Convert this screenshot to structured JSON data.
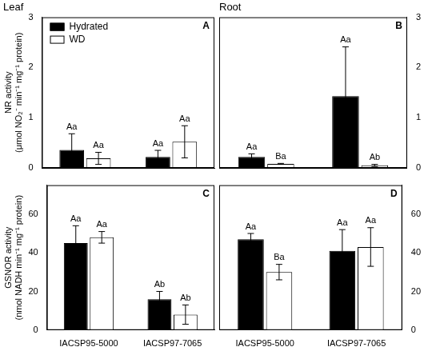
{
  "chart_data": [
    {
      "type": "bar",
      "title": "Leaf",
      "panel_label": "A",
      "y_label": [
        "NR activity",
        "(μmol NO₂⁻ min⁻¹ mg⁻¹ protein)"
      ],
      "categories": [
        "IACSP95-5000",
        "IACSP97-7065"
      ],
      "series": [
        {
          "name": "Hydrated",
          "color": "#000000",
          "values": [
            0.36,
            0.22
          ],
          "errors": [
            0.32,
            0.13
          ],
          "annotations": [
            "Aa",
            "Aa"
          ]
        },
        {
          "name": "WD",
          "color": "#ffffff",
          "values": [
            0.19,
            0.52
          ],
          "errors": [
            0.12,
            0.32
          ],
          "annotations": [
            "Aa",
            "Aa"
          ]
        }
      ],
      "ylim": [
        0,
        3
      ],
      "yticks": [
        0,
        1,
        2,
        3
      ],
      "grid": false,
      "legend": "upper left",
      "tick_labels": "y"
    },
    {
      "type": "bar",
      "title": "Root",
      "panel_label": "B",
      "categories": [
        "IACSP95-5000",
        "IACSP97-7065"
      ],
      "series": [
        {
          "name": "Hydrated",
          "color": "#000000",
          "values": [
            0.22,
            1.43
          ],
          "errors": [
            0.06,
            0.98
          ],
          "annotations": [
            "Aa",
            "Aa"
          ]
        },
        {
          "name": "WD",
          "color": "#ffffff",
          "values": [
            0.08,
            0.05
          ],
          "errors": [
            0.01,
            0.02
          ],
          "annotations": [
            "Ba",
            "Ab"
          ]
        }
      ],
      "ylim": [
        0,
        3
      ],
      "yticks": [
        0,
        1,
        2,
        3
      ],
      "grid": false,
      "tick_labels": "y"
    },
    {
      "type": "bar",
      "panel_label": "C",
      "y_label": [
        "GSNOR activity",
        "(nmol NADH min⁻¹ mg⁻¹ protein)"
      ],
      "categories": [
        "IACSP95-5000",
        "IACSP97-7065"
      ],
      "series": [
        {
          "name": "Hydrated",
          "color": "#000000",
          "values": [
            45,
            16
          ],
          "errors": [
            9,
            4
          ],
          "annotations": [
            "Aa",
            "Ab"
          ]
        },
        {
          "name": "WD",
          "color": "#ffffff",
          "values": [
            48,
            8
          ],
          "errors": [
            3,
            5
          ],
          "annotations": [
            "Aa",
            "Ab"
          ]
        }
      ],
      "ylim": [
        0,
        75
      ],
      "yticks": [
        0,
        20,
        40,
        60
      ],
      "grid": false
    },
    {
      "type": "bar",
      "panel_label": "D",
      "categories": [
        "IACSP95-5000",
        "IACSP97-7065"
      ],
      "series": [
        {
          "name": "Hydrated",
          "color": "#000000",
          "values": [
            47,
            41
          ],
          "errors": [
            3,
            11
          ],
          "annotations": [
            "Aa",
            "Aa"
          ]
        },
        {
          "name": "WD",
          "color": "#ffffff",
          "values": [
            30,
            43
          ],
          "errors": [
            4,
            10
          ],
          "annotations": [
            "Ba",
            "Aa"
          ]
        }
      ],
      "ylim": [
        0,
        75
      ],
      "yticks": [
        0,
        20,
        40,
        60
      ],
      "grid": false
    }
  ]
}
